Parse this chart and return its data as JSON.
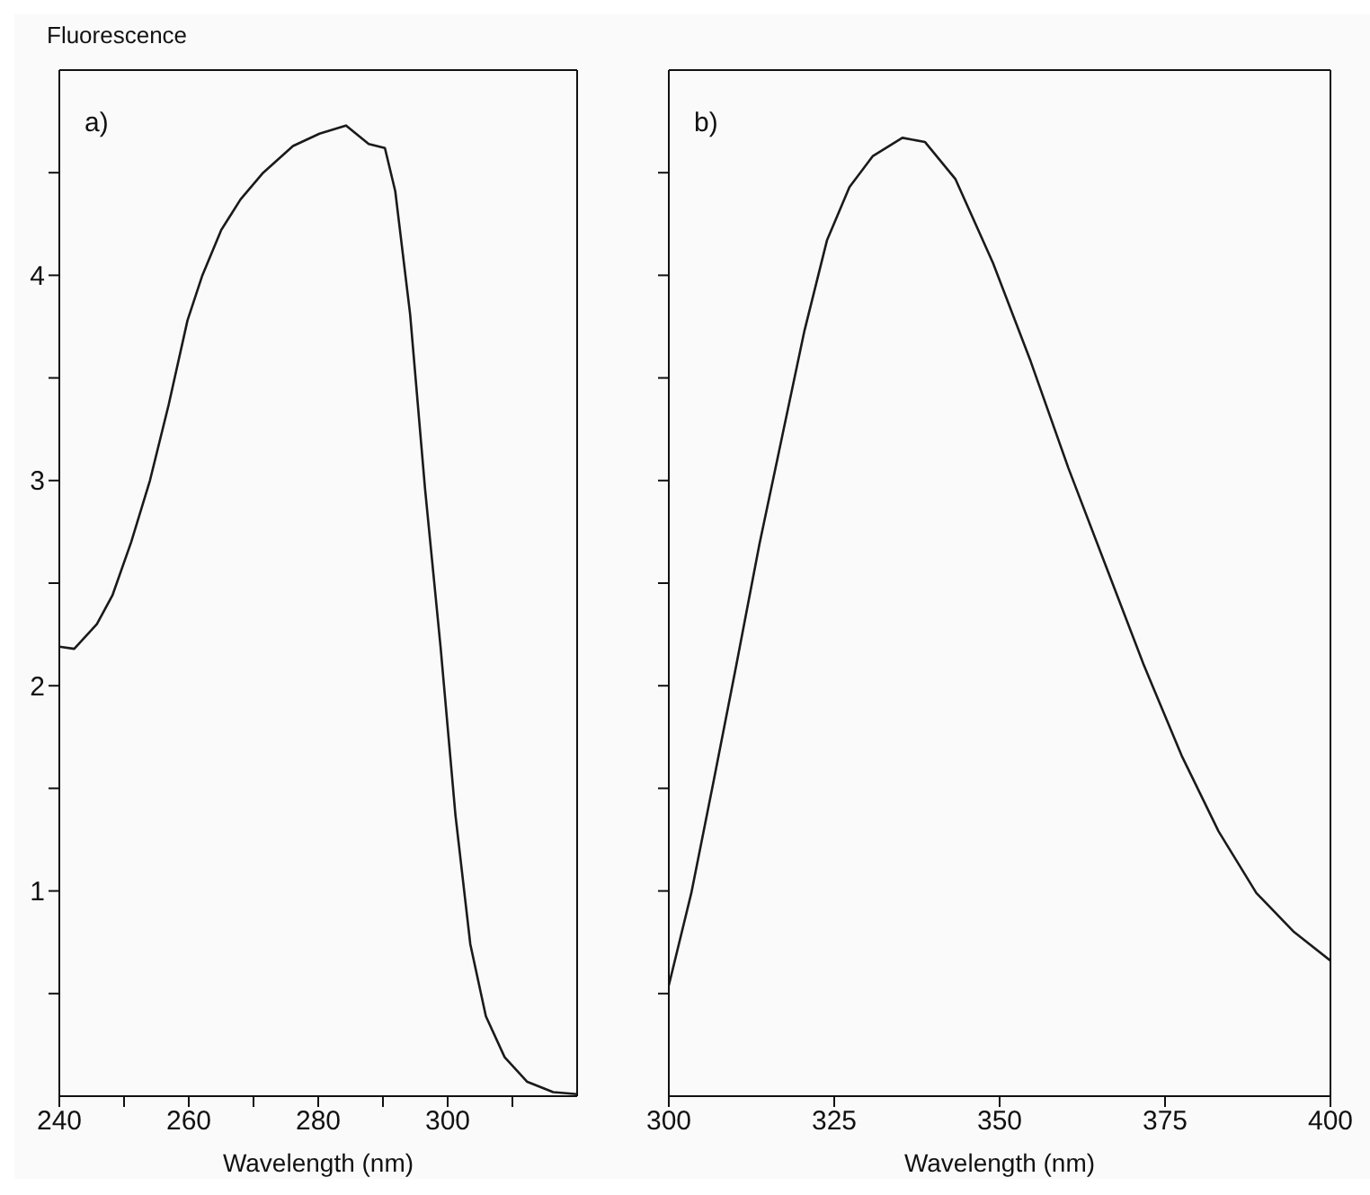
{
  "chart_data": [
    {
      "type": "line",
      "title": "a)",
      "ylabel": "Fluorescence",
      "xlabel": "Wavelength  (nm)",
      "xlim": [
        240,
        320
      ],
      "xticks": [
        240,
        {
          "value": 250,
          "label": null
        },
        260,
        {
          "value": 270,
          "label": null
        },
        280,
        {
          "value": 290,
          "label": null
        },
        300,
        {
          "value": 310,
          "label": null
        }
      ],
      "ylim": [
        0,
        5
      ],
      "yticks": [
        {
          "value": 0.5,
          "label": null
        },
        1,
        {
          "value": 1.5,
          "label": null
        },
        2,
        {
          "value": 2.5,
          "label": null
        },
        3,
        {
          "value": 3.5,
          "label": null
        },
        4,
        {
          "value": 4.5,
          "label": null
        }
      ],
      "grid": false,
      "legend": false,
      "series": [
        {
          "color": "#1a1a1a",
          "x": [
            240,
            242.3,
            245.8,
            248.2,
            251.1,
            254,
            256.9,
            259.8,
            262.1,
            265,
            268,
            271.5,
            276.1,
            280.2,
            284.3,
            287.8,
            290.3,
            291.9,
            294.2,
            296.5,
            298.9,
            301.2,
            303.5,
            305.9,
            308.8,
            312.3,
            316.3,
            320
          ],
          "values": [
            2.19,
            2.18,
            2.3,
            2.44,
            2.7,
            3.0,
            3.37,
            3.78,
            4.0,
            4.22,
            4.37,
            4.5,
            4.63,
            4.69,
            4.73,
            4.64,
            4.62,
            4.41,
            3.81,
            2.96,
            2.19,
            1.37,
            0.74,
            0.39,
            0.19,
            0.07,
            0.02,
            0.01
          ]
        }
      ]
    },
    {
      "type": "line",
      "title": "b)",
      "xlabel": "Wavelength  (nm)",
      "xlim": [
        300,
        400
      ],
      "xticks": [
        300,
        325,
        350,
        375,
        400
      ],
      "ylim": [
        0,
        5
      ],
      "yticks": [
        {
          "value": 0.5,
          "label": null
        },
        1,
        {
          "value": 1.5,
          "label": null
        },
        2,
        {
          "value": 2.5,
          "label": null
        },
        3,
        {
          "value": 3.5,
          "label": null
        },
        4,
        {
          "value": 4.5,
          "label": null
        }
      ],
      "tick_labels": "x",
      "grid": false,
      "legend": false,
      "series": [
        {
          "color": "#1a1a1a",
          "x": [
            300,
            303.4,
            306.8,
            310.2,
            313.7,
            317.1,
            320.5,
            323.9,
            327.3,
            330.8,
            335.3,
            338.7,
            343.3,
            349,
            354.7,
            360.4,
            366.1,
            371.8,
            377.5,
            383.1,
            388.8,
            394.5,
            400
          ],
          "values": [
            0.54,
            0.99,
            1.54,
            2.1,
            2.69,
            3.21,
            3.73,
            4.17,
            4.43,
            4.58,
            4.67,
            4.65,
            4.47,
            4.06,
            3.58,
            3.06,
            2.58,
            2.1,
            1.66,
            1.29,
            0.99,
            0.8,
            0.66
          ]
        }
      ]
    }
  ]
}
